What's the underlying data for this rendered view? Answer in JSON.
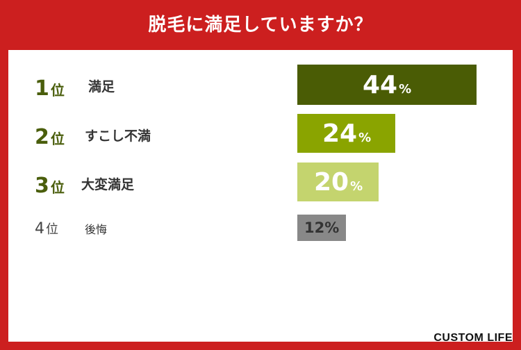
{
  "title": "脱毛に満足していますか？",
  "logo": "CUSTOM LIFE",
  "chart_data": {
    "type": "bar",
    "orientation": "horizontal",
    "title": "脱毛に満足していますか？",
    "unit": "%",
    "rank_suffix": "位",
    "categories": [
      "満足",
      "すこし不満",
      "大変満足",
      "後悔"
    ],
    "ranks": [
      "1",
      "2",
      "3",
      "4"
    ],
    "values": [
      44,
      24,
      20,
      12
    ],
    "colors": [
      "#4a5c05",
      "#8aa400",
      "#c4d46e",
      "#888888"
    ],
    "xlim": [
      0,
      44
    ]
  }
}
